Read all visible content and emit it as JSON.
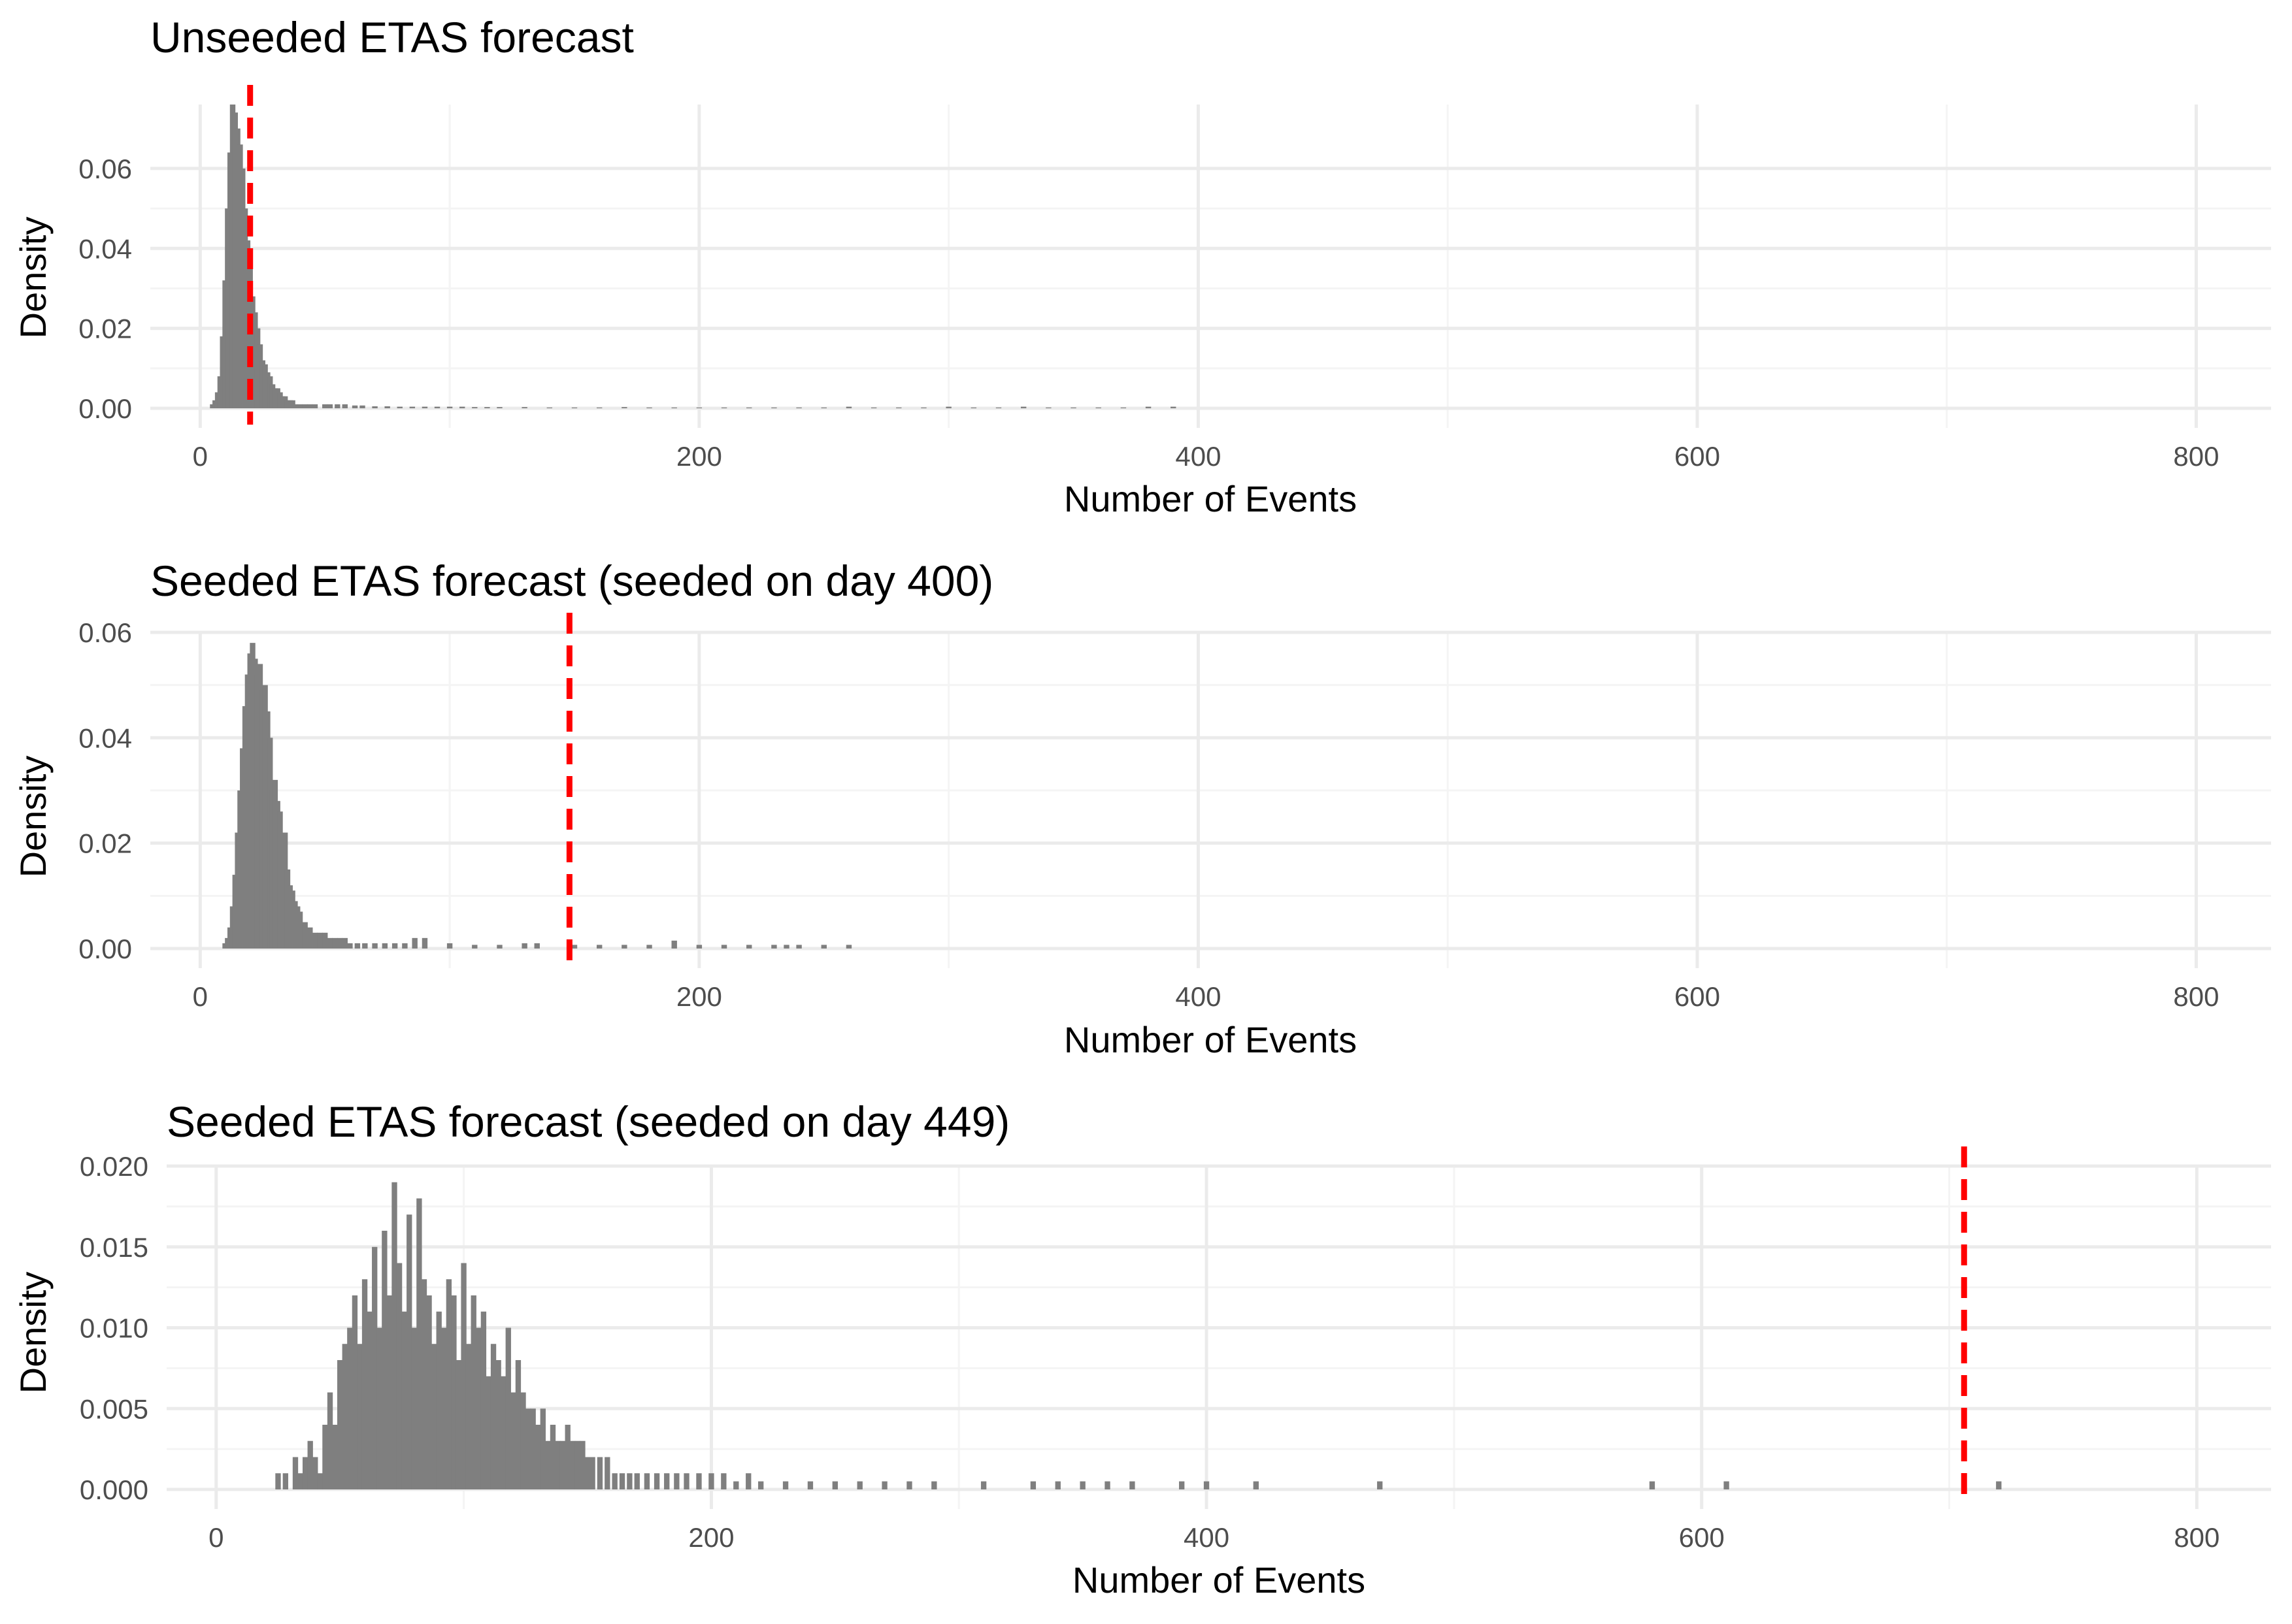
{
  "colors": {
    "bar": "#7f7f7f",
    "observed": "#ff0000",
    "grid_major": "#ebebeb",
    "grid_minor": "#f4f4f4",
    "background": "#ffffff"
  },
  "chart_data": [
    {
      "type": "bar",
      "title": "Unseeded ETAS forecast",
      "xlabel": "Number of Events",
      "ylabel": "Density",
      "xlim": [
        -20,
        830
      ],
      "ylim": [
        0,
        0.076
      ],
      "xticks": [
        0,
        200,
        400,
        600,
        800
      ],
      "xtick_labels": [
        "0",
        "200",
        "400",
        "600",
        "800"
      ],
      "yticks": [
        0.0,
        0.02,
        0.04,
        0.06
      ],
      "ytick_labels": [
        "0.00",
        "0.02",
        "0.04",
        "0.06"
      ],
      "grid": true,
      "observed_value": 20,
      "bins": {
        "x": [
          5,
          6,
          7,
          8,
          9,
          10,
          11,
          12,
          13,
          14,
          15,
          16,
          17,
          18,
          19,
          20,
          21,
          22,
          23,
          24,
          25,
          26,
          27,
          28,
          29,
          30,
          31,
          32,
          33,
          34,
          35,
          36,
          37,
          38,
          40,
          42,
          44,
          46,
          50,
          52,
          55,
          58,
          62,
          65,
          70,
          75,
          80,
          85,
          90,
          95,
          100,
          105,
          110,
          115,
          120,
          130,
          140,
          150,
          160,
          170,
          180,
          190,
          200,
          210,
          220,
          230,
          240,
          250,
          260,
          270,
          280,
          290,
          300,
          310,
          320,
          330,
          340,
          350,
          360,
          370,
          380,
          390
        ],
        "y": [
          0.001,
          0.002,
          0.004,
          0.008,
          0.018,
          0.032,
          0.05,
          0.064,
          0.076,
          0.074,
          0.07,
          0.066,
          0.06,
          0.05,
          0.042,
          0.036,
          0.028,
          0.024,
          0.02,
          0.016,
          0.012,
          0.011,
          0.009,
          0.008,
          0.006,
          0.005,
          0.005,
          0.004,
          0.003,
          0.003,
          0.002,
          0.002,
          0.002,
          0.001,
          0.001,
          0.001,
          0.001,
          0.001,
          0.001,
          0.001,
          0.001,
          0.001,
          0.0007,
          0.0007,
          0.0005,
          0.0005,
          0.0004,
          0.0004,
          0.0004,
          0.0004,
          0.0004,
          0.0004,
          0.0003,
          0.0003,
          0.0003,
          0.0003,
          0.0002,
          0.0002,
          0.0002,
          0.0003,
          0.0002,
          0.0002,
          0.0002,
          0.0002,
          0.0002,
          0.0002,
          0.0002,
          0.0002,
          0.0004,
          0.0002,
          0.0002,
          0.0002,
          0.0004,
          0.0002,
          0.0002,
          0.0004,
          0.0002,
          0.0002,
          0.0002,
          0.0002,
          0.0004,
          0.0004
        ]
      }
    },
    {
      "type": "bar",
      "title": "Seeded ETAS forecast (seeded on day 400)",
      "xlabel": "Number of Events",
      "ylabel": "Density",
      "xlim": [
        -20,
        830
      ],
      "ylim": [
        0,
        0.06
      ],
      "xticks": [
        0,
        200,
        400,
        600,
        800
      ],
      "xtick_labels": [
        "0",
        "200",
        "400",
        "600",
        "800"
      ],
      "yticks": [
        0.0,
        0.02,
        0.04,
        0.06
      ],
      "ytick_labels": [
        "0.00",
        "0.02",
        "0.04",
        "0.06"
      ],
      "grid": true,
      "observed_value": 148,
      "bins": {
        "x": [
          10,
          11,
          12,
          13,
          14,
          15,
          16,
          17,
          18,
          19,
          20,
          21,
          22,
          23,
          24,
          25,
          26,
          27,
          28,
          29,
          30,
          31,
          32,
          33,
          34,
          35,
          36,
          37,
          38,
          39,
          40,
          42,
          44,
          46,
          48,
          50,
          52,
          54,
          56,
          58,
          60,
          63,
          66,
          70,
          74,
          78,
          82,
          86,
          90,
          100,
          110,
          120,
          130,
          135,
          150,
          160,
          170,
          180,
          190,
          200,
          210,
          220,
          230,
          235,
          240,
          250,
          260
        ],
        "y": [
          0.001,
          0.002,
          0.004,
          0.008,
          0.014,
          0.022,
          0.03,
          0.038,
          0.046,
          0.052,
          0.056,
          0.058,
          0.055,
          0.052,
          0.054,
          0.049,
          0.05,
          0.045,
          0.04,
          0.03,
          0.032,
          0.028,
          0.026,
          0.02,
          0.022,
          0.015,
          0.012,
          0.011,
          0.009,
          0.008,
          0.007,
          0.005,
          0.004,
          0.003,
          0.003,
          0.003,
          0.002,
          0.002,
          0.002,
          0.002,
          0.001,
          0.001,
          0.001,
          0.001,
          0.001,
          0.001,
          0.001,
          0.002,
          0.002,
          0.001,
          0.0007,
          0.0007,
          0.001,
          0.001,
          0.0007,
          0.0007,
          0.0007,
          0.0007,
          0.0015,
          0.0007,
          0.0007,
          0.0007,
          0.0007,
          0.0007,
          0.0007,
          0.0007,
          0.0007
        ]
      }
    },
    {
      "type": "bar",
      "title": "Seeded ETAS forecast (seeded on day 449)",
      "xlabel": "Number of Events",
      "ylabel": "Density",
      "xlim": [
        -20,
        830
      ],
      "ylim": [
        0,
        0.02
      ],
      "xticks": [
        0,
        200,
        400,
        600,
        800
      ],
      "xtick_labels": [
        "0",
        "200",
        "400",
        "600",
        "800"
      ],
      "yticks": [
        0.0,
        0.005,
        0.01,
        0.015,
        0.02
      ],
      "ytick_labels": [
        "0.000",
        "0.005",
        "0.010",
        "0.015",
        "0.020"
      ],
      "grid": true,
      "observed_value": 706,
      "bins": {
        "x": [
          25,
          28,
          32,
          34,
          36,
          38,
          40,
          42,
          44,
          46,
          48,
          50,
          52,
          54,
          56,
          58,
          60,
          62,
          64,
          66,
          68,
          70,
          72,
          74,
          76,
          78,
          80,
          82,
          84,
          86,
          88,
          90,
          92,
          94,
          96,
          98,
          100,
          102,
          104,
          106,
          108,
          110,
          112,
          114,
          116,
          118,
          120,
          122,
          124,
          126,
          128,
          130,
          132,
          134,
          136,
          138,
          140,
          142,
          144,
          146,
          148,
          150,
          152,
          155,
          158,
          161,
          164,
          167,
          170,
          174,
          178,
          182,
          186,
          190,
          195,
          200,
          205,
          210,
          215,
          220,
          230,
          240,
          250,
          260,
          270,
          280,
          290,
          310,
          330,
          340,
          350,
          360,
          370,
          390,
          400,
          420,
          470,
          580,
          610,
          720
        ],
        "y": [
          0.001,
          0.001,
          0.002,
          0.001,
          0.002,
          0.003,
          0.002,
          0.001,
          0.004,
          0.006,
          0.004,
          0.008,
          0.009,
          0.01,
          0.012,
          0.009,
          0.013,
          0.011,
          0.015,
          0.01,
          0.016,
          0.012,
          0.019,
          0.014,
          0.011,
          0.017,
          0.01,
          0.018,
          0.013,
          0.012,
          0.009,
          0.011,
          0.01,
          0.013,
          0.012,
          0.008,
          0.014,
          0.009,
          0.012,
          0.01,
          0.011,
          0.007,
          0.009,
          0.008,
          0.007,
          0.01,
          0.006,
          0.008,
          0.006,
          0.005,
          0.005,
          0.004,
          0.005,
          0.003,
          0.004,
          0.003,
          0.003,
          0.004,
          0.003,
          0.003,
          0.003,
          0.002,
          0.002,
          0.002,
          0.002,
          0.001,
          0.001,
          0.001,
          0.001,
          0.001,
          0.001,
          0.001,
          0.001,
          0.001,
          0.001,
          0.001,
          0.001,
          0.0005,
          0.001,
          0.0005,
          0.0005,
          0.0005,
          0.0005,
          0.0005,
          0.0005,
          0.0005,
          0.0005,
          0.0005,
          0.0005,
          0.0005,
          0.0005,
          0.0005,
          0.0005,
          0.0005,
          0.0005,
          0.0005,
          0.0005,
          0.0005,
          0.0005,
          0.0005
        ]
      }
    }
  ]
}
